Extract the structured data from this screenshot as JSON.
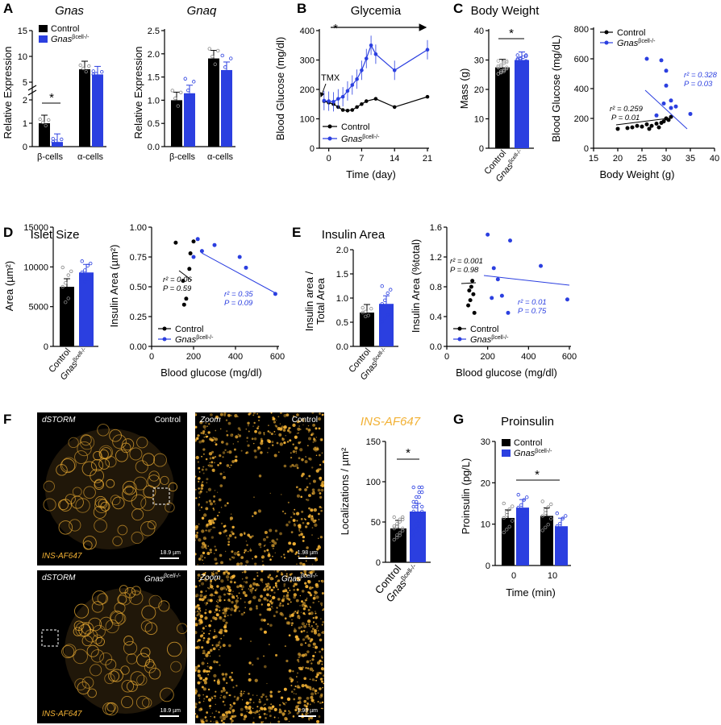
{
  "panel_letters": {
    "A": "A",
    "B": "B",
    "C": "C",
    "D": "D",
    "E": "E",
    "F": "F",
    "G": "G"
  },
  "colors": {
    "control": "#000000",
    "ko": "#2b3fe0",
    "microscopy": "#f2b134"
  },
  "legend": {
    "control": "Control",
    "ko_base": "Gnas",
    "ko_sup": "βcell-/-"
  },
  "panelA": {
    "gnas": {
      "title": "Gnas",
      "ylabel": "Relative Expression",
      "yticks_low": [
        "0",
        "1",
        "2"
      ],
      "yticks_high": [
        "5",
        "10",
        "15"
      ],
      "groups": [
        "β-cells",
        "α-cells"
      ],
      "sig": "*"
    },
    "gnaq": {
      "title": "Gnaq",
      "ylabel": "Relative Expression",
      "yticks": [
        "0.0",
        "0.5",
        "1.0",
        "1.5",
        "2.0",
        "2.5"
      ],
      "groups": [
        "β-cells",
        "α-cells"
      ]
    }
  },
  "panelB": {
    "title": "Glycemia",
    "xlabel": "Time (day)",
    "ylabel": "Blood Glucose (mg/dl)",
    "xticks": [
      "0",
      "7",
      "14",
      "21"
    ],
    "yticks": [
      "0",
      "100",
      "200",
      "300",
      "400"
    ],
    "tmx": "TMX",
    "sig": "*"
  },
  "panelC": {
    "title": "Body Weight",
    "mass": {
      "ylabel": "Mass (g)",
      "yticks": [
        "0",
        "10",
        "20",
        "30",
        "40"
      ],
      "sig": "*"
    },
    "scatter": {
      "xlabel": "Body Weight (g)",
      "ylabel": "Blood Glucose (mg/dL)",
      "xticks": [
        "15",
        "20",
        "25",
        "30",
        "35",
        "40"
      ],
      "yticks": [
        "0",
        "200",
        "400",
        "600",
        "800"
      ],
      "ctrl_r2": "r² = 0.259",
      "ctrl_p": "P = 0.01",
      "ko_r2": "r² = 0.328",
      "ko_p": "P = 0.03"
    }
  },
  "panelD": {
    "title": "Islet Size",
    "area": {
      "ylabel": "Area (µm²)",
      "yticks": [
        "0",
        "5000",
        "10000",
        "15000"
      ]
    },
    "scatter": {
      "xlabel": "Blood glucose (mg/dl)",
      "ylabel": "Insulin Area (µm²)",
      "xticks": [
        "0",
        "200",
        "400",
        "600"
      ],
      "yticks": [
        "0.00",
        "0.25",
        "0.50",
        "0.75",
        "1.00"
      ],
      "ctrl_r2": "r² = 0.06",
      "ctrl_p": "P = 0.59",
      "ko_r2": "r² = 0.35",
      "ko_p": "P = 0.09"
    }
  },
  "panelE": {
    "title": "Insulin Area",
    "ratio": {
      "ylabel_1": "Insulin area /",
      "ylabel_2": "Total Area",
      "yticks": [
        "0.0",
        "0.5",
        "1.0",
        "1.5",
        "2.0"
      ]
    },
    "scatter": {
      "xlabel": "Blood glucose (mg/dl)",
      "ylabel": "Insulin Area (%total)",
      "xticks": [
        "0",
        "200",
        "400",
        "600"
      ],
      "yticks": [
        "0.0",
        "0.4",
        "0.8",
        "1.2",
        "1.6"
      ],
      "ctrl_r2": "r² = 0.001",
      "ctrl_p": "P = 0.98",
      "ko_r2": "r² = 0.01",
      "ko_p": "P = 0.75"
    }
  },
  "panelF": {
    "title": "INS-AF647",
    "ylabel": "Localizations / µm²",
    "yticks": [
      "0",
      "50",
      "100",
      "150"
    ],
    "sig": "*",
    "images": {
      "dstorm": "dSTORM",
      "zoom": "Zoom",
      "control": "Control",
      "stain": "INS-AF647",
      "scale_large": "18.9 µm",
      "scale_small": "1.98 µm"
    }
  },
  "panelG": {
    "title": "Proinsulin",
    "xlabel": "Time (min)",
    "ylabel": "Proinsulin (pg/L)",
    "xticks": [
      "0",
      "10"
    ],
    "yticks": [
      "0",
      "10",
      "20",
      "30"
    ],
    "sig": "*"
  },
  "chart_data": [
    {
      "type": "bar",
      "title": "Gnas",
      "ylabel": "Relative Expression",
      "categories": [
        "β-cells",
        "α-cells"
      ],
      "series": [
        {
          "name": "Control",
          "values": [
            1.0,
            7.5
          ]
        },
        {
          "name": "Gnasβcell-/-",
          "values": [
            0.2,
            6.5
          ]
        }
      ]
    },
    {
      "type": "bar",
      "title": "Gnaq",
      "ylabel": "Relative Expression",
      "ylim": [
        0,
        2.5
      ],
      "categories": [
        "β-cells",
        "α-cells"
      ],
      "series": [
        {
          "name": "Control",
          "values": [
            1.0,
            1.9
          ]
        },
        {
          "name": "Gnasβcell-/-",
          "values": [
            1.15,
            1.65
          ]
        }
      ]
    },
    {
      "type": "line",
      "title": "Glycemia",
      "xlabel": "Time (day)",
      "ylabel": "Blood Glucose (mg/dl)",
      "xlim": [
        -2,
        21
      ],
      "ylim": [
        0,
        400
      ],
      "series": [
        {
          "name": "Control",
          "x": [
            -1,
            0,
            1,
            2,
            3,
            4,
            5,
            6,
            7,
            8,
            10,
            14,
            21
          ],
          "y": [
            160,
            155,
            150,
            140,
            130,
            128,
            130,
            140,
            150,
            160,
            168,
            140,
            175
          ]
        },
        {
          "name": "Gnasβcell-/-",
          "x": [
            -1,
            0,
            1,
            2,
            3,
            4,
            5,
            6,
            7,
            8,
            9,
            10,
            14,
            21
          ],
          "y": [
            162,
            160,
            158,
            168,
            175,
            195,
            215,
            235,
            265,
            305,
            350,
            320,
            265,
            335
          ]
        }
      ]
    },
    {
      "type": "bar",
      "ylabel": "Mass (g)",
      "ylim": [
        0,
        40
      ],
      "categories": [
        "Control",
        "Gnasβcell-/-"
      ],
      "values": [
        27.5,
        30
      ]
    },
    {
      "type": "scatter",
      "xlabel": "Body Weight (g)",
      "ylabel": "Blood Glucose (mg/dL)",
      "xlim": [
        15,
        40
      ],
      "ylim": [
        0,
        800
      ],
      "series": [
        {
          "name": "Control",
          "points": [
            [
              20,
              130
            ],
            [
              22,
              135
            ],
            [
              23,
              140
            ],
            [
              24,
              150
            ],
            [
              25,
              145
            ],
            [
              26,
              160
            ],
            [
              27,
              150
            ],
            [
              28,
              165
            ],
            [
              29,
              170
            ],
            [
              29.5,
              180
            ],
            [
              30,
              200
            ],
            [
              30.5,
              190
            ],
            [
              31,
              210
            ],
            [
              26.5,
              130
            ],
            [
              28.5,
              140
            ]
          ]
        },
        {
          "name": "Gnasβcell-/-",
          "points": [
            [
              26,
              600
            ],
            [
              29,
              590
            ],
            [
              30,
              520
            ],
            [
              31,
              320
            ],
            [
              32,
              280
            ],
            [
              35,
              230
            ],
            [
              29.5,
              300
            ],
            [
              28,
              220
            ],
            [
              31,
              270
            ],
            [
              30,
              420
            ]
          ]
        }
      ]
    },
    {
      "type": "bar",
      "ylabel": "Area (µm²)",
      "ylim": [
        0,
        15000
      ],
      "categories": [
        "Control",
        "Gnasβcell-/-"
      ],
      "values": [
        7500,
        9300
      ]
    },
    {
      "type": "scatter",
      "xlabel": "Blood glucose (mg/dl)",
      "ylabel": "Insulin Area (µm²)",
      "xlim": [
        0,
        600
      ],
      "ylim": [
        0,
        1
      ],
      "series": [
        {
          "name": "Control",
          "points": [
            [
              115,
              0.87
            ],
            [
              150,
              0.55
            ],
            [
              155,
              0.35
            ],
            [
              165,
              0.4
            ],
            [
              180,
              0.65
            ],
            [
              185,
              0.78
            ],
            [
              200,
              0.88
            ]
          ]
        },
        {
          "name": "Gnasβcell-/-",
          "points": [
            [
              200,
              0.75
            ],
            [
              220,
              0.9
            ],
            [
              240,
              0.8
            ],
            [
              300,
              0.85
            ],
            [
              420,
              0.75
            ],
            [
              450,
              0.66
            ],
            [
              590,
              0.44
            ]
          ]
        }
      ]
    },
    {
      "type": "bar",
      "ylabel": "Insulin area / Total Area",
      "ylim": [
        0,
        2
      ],
      "categories": [
        "Control",
        "Gnasβcell-/-"
      ],
      "values": [
        0.7,
        0.88
      ]
    },
    {
      "type": "scatter",
      "xlabel": "Blood glucose (mg/dl)",
      "ylabel": "Insulin Area (%total)",
      "xlim": [
        0,
        600
      ],
      "ylim": [
        0,
        1.6
      ],
      "series": [
        {
          "name": "Control",
          "points": [
            [
              105,
              0.55
            ],
            [
              110,
              0.75
            ],
            [
              115,
              0.62
            ],
            [
              120,
              0.8
            ],
            [
              125,
              0.88
            ],
            [
              130,
              0.7
            ],
            [
              135,
              0.45
            ]
          ]
        },
        {
          "name": "Gnasβcell-/-",
          "points": [
            [
              200,
              1.5
            ],
            [
              230,
              1.05
            ],
            [
              250,
              0.9
            ],
            [
              300,
              0.45
            ],
            [
              310,
              1.42
            ],
            [
              460,
              1.08
            ],
            [
              590,
              0.63
            ],
            [
              220,
              0.65
            ],
            [
              270,
              0.68
            ]
          ]
        }
      ]
    },
    {
      "type": "bar",
      "title": "INS-AF647",
      "ylabel": "Localizations / µm²",
      "ylim": [
        0,
        150
      ],
      "categories": [
        "Control",
        "Gnasβcell-/-"
      ],
      "values": [
        42,
        63
      ]
    },
    {
      "type": "bar",
      "title": "Proinsulin",
      "xlabel": "Time (min)",
      "ylabel": "Proinsulin (pg/L)",
      "ylim": [
        0,
        30
      ],
      "categories": [
        "0",
        "10"
      ],
      "series": [
        {
          "name": "Control",
          "values": [
            11.5,
            12
          ]
        },
        {
          "name": "Gnasβcell-/-",
          "values": [
            14,
            9.5
          ]
        }
      ]
    }
  ]
}
